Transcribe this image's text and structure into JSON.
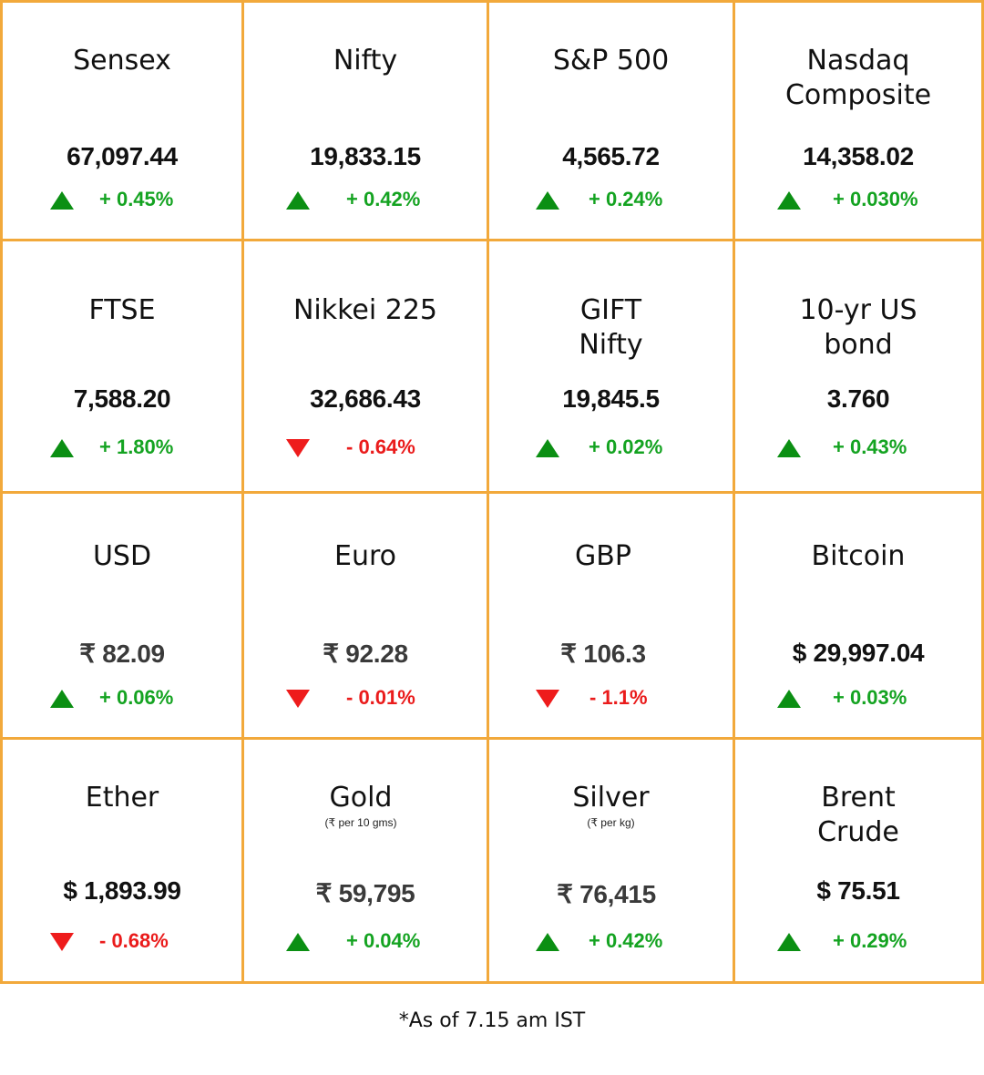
{
  "tiles": [
    {
      "name": "Sensex",
      "sub": "",
      "value": "67,097.44",
      "direction": "up",
      "change": "+ 0.45%"
    },
    {
      "name": "Nifty",
      "sub": "",
      "value": "19,833.15",
      "direction": "up",
      "change": "+ 0.42%"
    },
    {
      "name": "S&P 500",
      "sub": "",
      "value": "4,565.72",
      "direction": "up",
      "change": "+ 0.24%"
    },
    {
      "name": "Nasdaq\nComposite",
      "sub": "",
      "value": "14,358.02",
      "direction": "up",
      "change": "+ 0.030%"
    },
    {
      "name": "FTSE",
      "sub": "",
      "value": "7,588.20",
      "direction": "up",
      "change": "+ 1.80%"
    },
    {
      "name": "Nikkei 225",
      "sub": "",
      "value": "32,686.43",
      "direction": "down",
      "change": "- 0.64%"
    },
    {
      "name": "GIFT\nNifty",
      "sub": "",
      "value": "19,845.5",
      "direction": "up",
      "change": "+ 0.02%"
    },
    {
      "name": "10-yr US\nbond",
      "sub": "",
      "value": "3.760",
      "direction": "up",
      "change": "+ 0.43%"
    },
    {
      "name": "USD",
      "sub": "",
      "value": "₹ 82.09",
      "direction": "up",
      "change": "+ 0.06%"
    },
    {
      "name": "Euro",
      "sub": "",
      "value": "₹ 92.28",
      "direction": "down",
      "change": "- 0.01%"
    },
    {
      "name": "GBP",
      "sub": "",
      "value": "₹ 106.3",
      "direction": "down",
      "change": "- 1.1%"
    },
    {
      "name": "Bitcoin",
      "sub": "",
      "value": "$ 29,997.04",
      "direction": "up",
      "change": "+ 0.03%"
    },
    {
      "name": "Ether",
      "sub": "",
      "value": "$ 1,893.99",
      "direction": "down",
      "change": "- 0.68%"
    },
    {
      "name": "Gold",
      "sub": "(₹ per 10 gms)",
      "value": "₹ 59,795",
      "direction": "up",
      "change": "+ 0.04%"
    },
    {
      "name": "Silver",
      "sub": "(₹ per kg)",
      "value": "₹ 76,415",
      "direction": "up",
      "change": "+ 0.42%"
    },
    {
      "name": "Brent\nCrude",
      "sub": "",
      "value": "$ 75.51",
      "direction": "up",
      "change": "+ 0.29%"
    }
  ],
  "colors": {
    "border": "#f2a93b",
    "up": "#14a321",
    "down": "#ea1b1b"
  },
  "icons": {
    "up": "triangle-up-icon",
    "down": "triangle-down-icon"
  },
  "footnote": "*As of 7.15 am IST"
}
